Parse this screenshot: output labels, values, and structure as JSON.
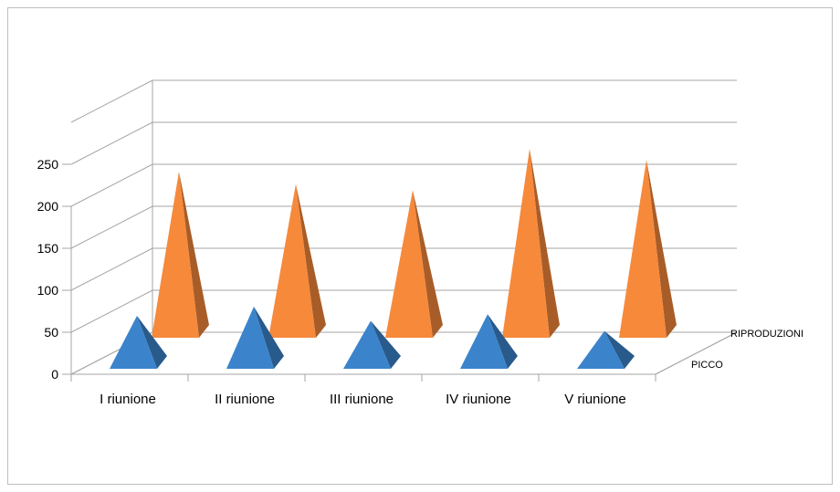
{
  "chart_data": {
    "type": "bar",
    "style": "3d-pyramid",
    "categories": [
      "I riunione",
      "II riunione",
      "III riunione",
      "IV riunione",
      "V riunione"
    ],
    "series": [
      {
        "name": "PICCO",
        "values": [
          63,
          74,
          57,
          65,
          45
        ],
        "color": "#3b84cc"
      },
      {
        "name": "RIPRODUZIONI",
        "values": [
          198,
          183,
          176,
          225,
          212
        ],
        "color": "#f7893b"
      }
    ],
    "yticks": [
      "0",
      "50",
      "100",
      "150",
      "200",
      "250"
    ],
    "ylim": [
      0,
      250
    ],
    "grid": true
  }
}
